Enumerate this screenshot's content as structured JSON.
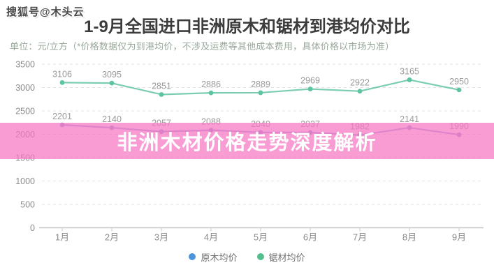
{
  "watermark": {
    "text": "搜狐号@木头云"
  },
  "header": {
    "title": "1-9月全国进口非洲原木和锯材到港均价对比",
    "subtitle": "单位：元/立方（*价格数据仅为到港均价，不涉及运费等其他成本费用，具体价格以市场为准）"
  },
  "overlay_banner": {
    "text": "非洲木材价格走势深度解析",
    "text_color": "#ffffff",
    "background_color": "rgba(247,118,196,0.72)"
  },
  "chart_data": {
    "type": "line",
    "categories": [
      "1月",
      "2月",
      "3月",
      "4月",
      "5月",
      "6月",
      "7月",
      "8月",
      "9月"
    ],
    "series": [
      {
        "name": "原木均价",
        "values": [
          2201,
          2140,
          2057,
          2088,
          2040,
          2037,
          1982,
          2141,
          1990
        ],
        "line_color": "#a2a6db",
        "point_color": "#9499d0",
        "legend_color": "#4c95d8"
      },
      {
        "name": "锯材均价",
        "values": [
          3106,
          3095,
          2851,
          2886,
          2889,
          2969,
          2922,
          3165,
          2950
        ],
        "line_color": "#7bcdb1",
        "point_color": "#5dc3a1",
        "legend_color": "#54bf8d"
      }
    ],
    "ylim": [
      0,
      3500
    ],
    "ytick_step": 500,
    "grid": true,
    "legend_position": "bottom",
    "point_label_color": "#9a9a9a",
    "axis_label_color": "#8c8c8c",
    "gridline_color": "#e2e2e2",
    "axis_line_color": "#c8c8c8"
  }
}
